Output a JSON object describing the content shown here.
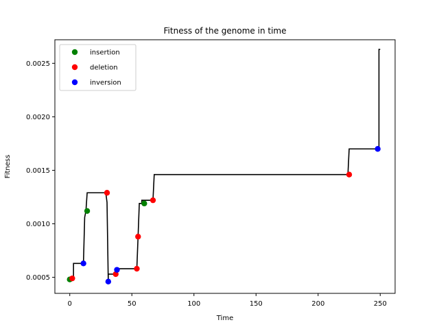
{
  "chart_data": {
    "type": "line",
    "title": "Fitness of the genome in time",
    "xlabel": "Time",
    "ylabel": "Fitness",
    "xlim": [
      -12,
      262
    ],
    "ylim": [
      0.00035,
      0.00272
    ],
    "xticks": [
      0,
      50,
      100,
      150,
      200,
      250
    ],
    "yticks": [
      0.0005,
      0.001,
      0.0015,
      0.002,
      0.0025
    ],
    "ytick_labels": [
      "0.0005",
      "0.0010",
      "0.0015",
      "0.0020",
      "0.0025"
    ],
    "grid": false,
    "legend_position": "top-left",
    "line": {
      "color": "#000000",
      "points": [
        [
          0,
          0.00048
        ],
        [
          2,
          0.00049
        ],
        [
          3,
          0.00049
        ],
        [
          3,
          0.00063
        ],
        [
          11,
          0.00063
        ],
        [
          12,
          0.00106
        ],
        [
          13,
          0.00112
        ],
        [
          14,
          0.00129
        ],
        [
          29,
          0.00129
        ],
        [
          30,
          0.0012
        ],
        [
          31,
          0.00046
        ],
        [
          31,
          0.00053
        ],
        [
          37,
          0.00053
        ],
        [
          38,
          0.00058
        ],
        [
          54,
          0.00058
        ],
        [
          55,
          0.00088
        ],
        [
          56,
          0.00119
        ],
        [
          58,
          0.00119
        ],
        [
          58,
          0.00122
        ],
        [
          67,
          0.00122
        ],
        [
          68,
          0.00146
        ],
        [
          224,
          0.00146
        ],
        [
          225,
          0.0017
        ],
        [
          249,
          0.0017
        ],
        [
          249,
          0.00263
        ],
        [
          250,
          0.00263
        ]
      ]
    },
    "series": [
      {
        "name": "insertion",
        "color": "#008000",
        "points": [
          [
            0,
            0.00048
          ],
          [
            14,
            0.00112
          ],
          [
            60,
            0.00119
          ]
        ]
      },
      {
        "name": "deletion",
        "color": "#ff0000",
        "points": [
          [
            2,
            0.00049
          ],
          [
            30,
            0.00129
          ],
          [
            37,
            0.00053
          ],
          [
            54,
            0.00058
          ],
          [
            55,
            0.00088
          ],
          [
            67,
            0.00122
          ],
          [
            225,
            0.00146
          ]
        ]
      },
      {
        "name": "inversion",
        "color": "#0000ff",
        "points": [
          [
            11,
            0.00063
          ],
          [
            31,
            0.00046
          ],
          [
            38,
            0.00057
          ],
          [
            248,
            0.0017
          ]
        ]
      }
    ]
  }
}
